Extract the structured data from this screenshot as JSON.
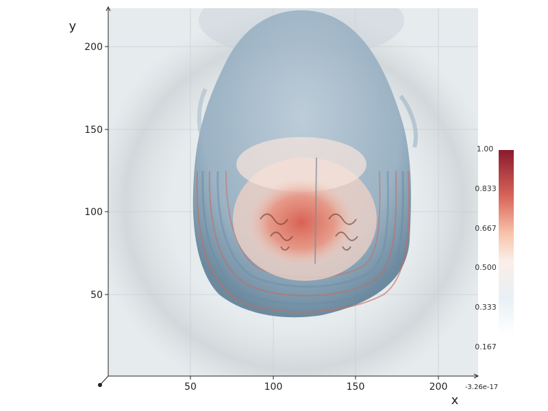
{
  "axes": {
    "xlabel": "x",
    "ylabel": "y",
    "x_ticks": [
      "50",
      "100",
      "150",
      "200"
    ],
    "y_ticks": [
      "200",
      "150",
      "100",
      "50"
    ],
    "x_end_label": "-3.26e-17"
  },
  "colorbar": {
    "colorscale": "RdBu",
    "ticks": [
      "1.00",
      "0.833",
      "0.667",
      "0.500",
      "0.333",
      "0.167"
    ],
    "colors": {
      "top": "#8b1a2d",
      "mid_high": "#f7b99a",
      "mid": "#fbeee8",
      "mid_low": "#e6eef4",
      "bottom": "#ffffff"
    }
  },
  "colors": {
    "background": "#e6ebee",
    "volume_blue": "#7f9fb6",
    "volume_red": "#d96b57",
    "grid": "#cfd6db"
  }
}
